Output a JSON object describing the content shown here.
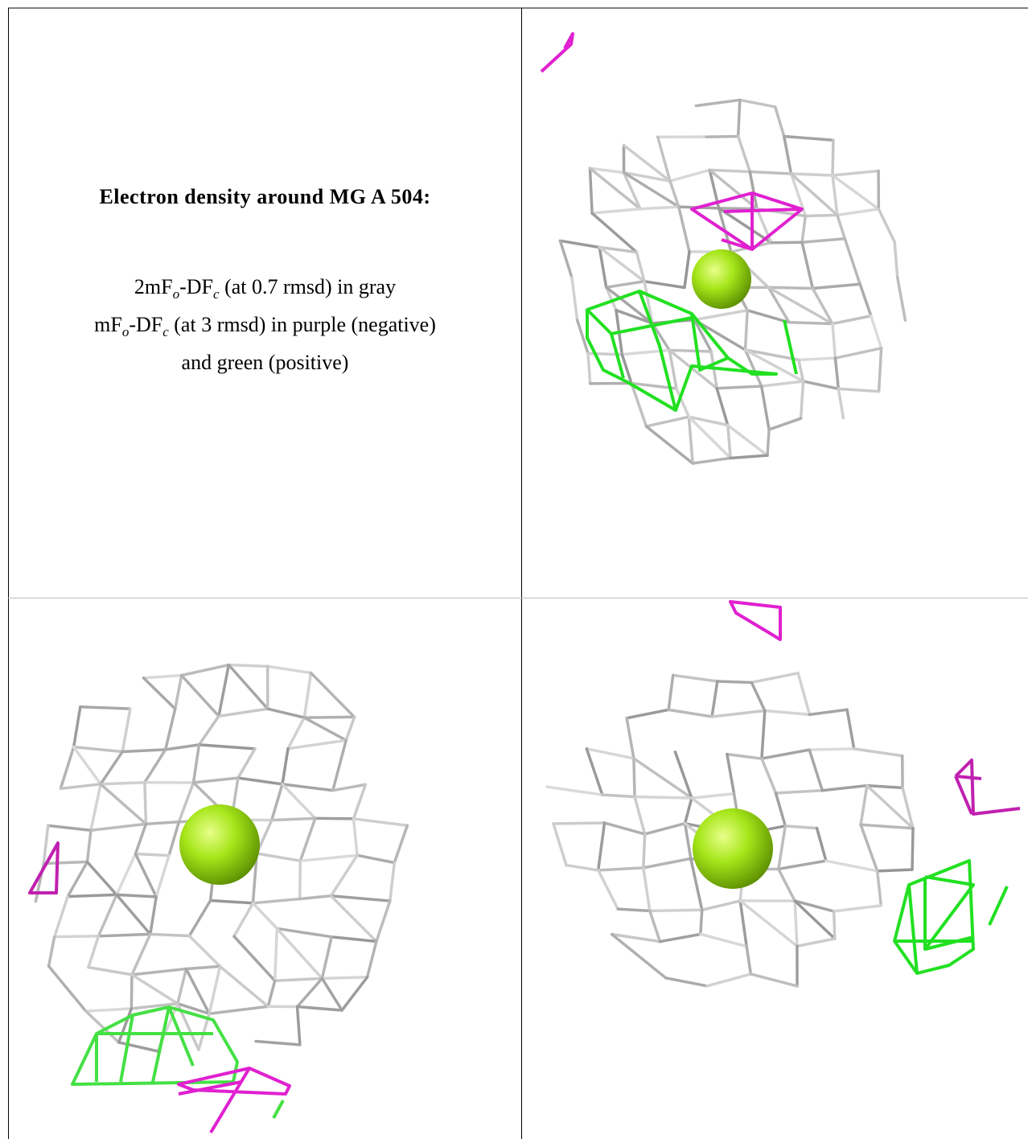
{
  "caption": {
    "title": "Electron density around MG A 504:",
    "lines": [
      [
        "2mF",
        "o",
        "-DF",
        "c",
        " (at 0.7 rmsd) in gray"
      ],
      [
        "mF",
        "o",
        "-DF",
        "c",
        " (at 3 rmsd) in purple (negative)"
      ],
      "and green (positive)"
    ]
  }
}
